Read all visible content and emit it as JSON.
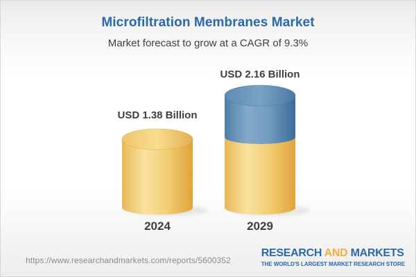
{
  "header": {
    "title": "Microfiltration Membranes Market",
    "subtitle": "Market forecast to grow at a CAGR of 9.3%"
  },
  "chart_data": {
    "type": "bar",
    "variant": "3d-cylinder",
    "title": "Microfiltration Membranes Market",
    "subtitle": "Market forecast to grow at a CAGR of 9.3%",
    "cagr_percent": 9.3,
    "unit": "USD Billion",
    "categories": [
      "2024",
      "2029"
    ],
    "values": [
      1.38,
      2.16
    ],
    "bars": [
      {
        "year": "2024",
        "value": 1.38,
        "value_label": "USD 1.38 Billion",
        "segments": [
          "gold"
        ]
      },
      {
        "year": "2029",
        "value": 2.16,
        "value_label": "USD 2.16 Billion",
        "segments": [
          "gold",
          "blue"
        ],
        "note": "gold base equals 2024 value, blue top is forecast growth"
      }
    ],
    "legend_position": "none",
    "grid": false,
    "axes_shown": false
  },
  "footer": {
    "url": "https://www.researchandmarkets.com/reports/5600352",
    "logo": {
      "part1": "RESEARCH",
      "part2": "AND",
      "part3": "MARKETS",
      "tagline": "THE WORLD'S LARGEST MARKET RESEARCH STORE"
    }
  },
  "colors": {
    "accent_blue": "#2a68ac",
    "accent_gold": "#eeb03e",
    "text_dark": "#3e3e3e",
    "url_gray": "#8a8a8a",
    "gold": {
      "edge": "#E9B857",
      "light": "#F9E2A0",
      "mid": "#F3CF76",
      "dark": "#DFA43C",
      "cap_edge": "#EFC66B",
      "cap_light": "#F8DD90",
      "cap_dark": "#E4AE4F",
      "rim": "#D9A13F"
    },
    "blue": {
      "edge": "#4E7EA7",
      "light": "#84AACA",
      "mid": "#719DC0",
      "dark": "#3C6B99",
      "cap_edge": "#5D8CB4",
      "cap_light": "#78A3C4",
      "cap_dark": "#4A7AA3",
      "rim": "#3E6D99"
    }
  }
}
